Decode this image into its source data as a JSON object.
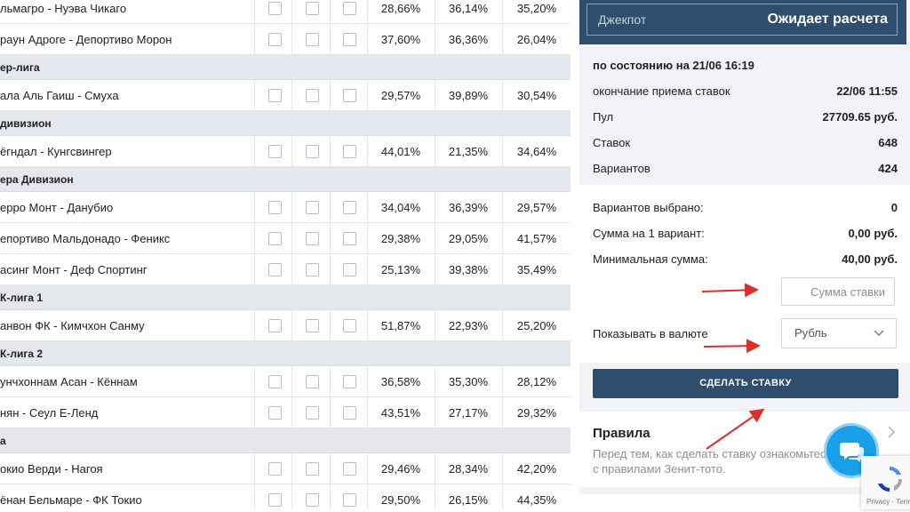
{
  "matches_table": {
    "rows": [
      {
        "type": "match",
        "name": "льмагро - Нуэва Чикаго",
        "p1": "28,66%",
        "px": "36,14%",
        "p2": "35,20%"
      },
      {
        "type": "match",
        "name": "раун Адроге - Депортиво Морон",
        "p1": "37,60%",
        "px": "36,36%",
        "p2": "26,04%"
      },
      {
        "type": "league",
        "name": "ер-лига"
      },
      {
        "type": "match",
        "name": "ала Аль Гаиш - Смуха",
        "p1": "29,57%",
        "px": "39,89%",
        "p2": "30,54%"
      },
      {
        "type": "league",
        "name": "дивизион"
      },
      {
        "type": "match",
        "name": "ёгндал - Кунгсвингер",
        "p1": "44,01%",
        "px": "21,35%",
        "p2": "34,64%"
      },
      {
        "type": "league",
        "name": "ера Дивизион"
      },
      {
        "type": "match",
        "name": "ерро Монт - Данубио",
        "p1": "34,04%",
        "px": "36,39%",
        "p2": "29,57%"
      },
      {
        "type": "match",
        "name": "епортиво Мальдонадо - Феникс",
        "p1": "29,38%",
        "px": "29,05%",
        "p2": "41,57%"
      },
      {
        "type": "match",
        "name": "асинг Монт - Деф Спортинг",
        "p1": "25,13%",
        "px": "39,38%",
        "p2": "35,49%"
      },
      {
        "type": "league",
        "name": "К-лига 1"
      },
      {
        "type": "match",
        "name": "анвон ФК - Кимчхон Санму",
        "p1": "51,87%",
        "px": "22,93%",
        "p2": "25,20%"
      },
      {
        "type": "league",
        "name": "К-лига 2"
      },
      {
        "type": "match",
        "name": "унчхоннам Асан - Кённам",
        "p1": "36,58%",
        "px": "35,30%",
        "p2": "28,12%"
      },
      {
        "type": "match",
        "name": "нян - Сеул Е-Ленд",
        "p1": "43,51%",
        "px": "27,17%",
        "p2": "29,32%"
      },
      {
        "type": "league",
        "name": "а"
      },
      {
        "type": "match",
        "name": "окио Верди - Нагоя",
        "p1": "29,46%",
        "px": "28,34%",
        "p2": "42,20%"
      },
      {
        "type": "match",
        "name": "ёнан Бельмаре - ФК Токио",
        "p1": "29,50%",
        "px": "26,15%",
        "p2": "44,35%"
      }
    ]
  },
  "jackpot": {
    "label": "Джекпот",
    "status": "Ожидает расчета"
  },
  "info": {
    "as_of": "по состоянию на 21/06 16:19",
    "close_label": "окончание приема ставок",
    "close_value": "22/06 11:55",
    "pool_label": "Пул",
    "pool_value": "27709.65 руб.",
    "bets_label": "Ставок",
    "bets_value": "648",
    "variants_label": "Вариантов",
    "variants_value": "424"
  },
  "selection": {
    "selected_label": "Вариантов выбрано:",
    "selected_value": "0",
    "per_variant_label": "Сумма на 1 вариант:",
    "per_variant_value": "0,00 руб.",
    "min_label": "Минимальная сумма:",
    "min_value": "40,00 руб.",
    "amount_placeholder": "Сумма ставки",
    "currency_label": "Показывать в валюте",
    "currency_value": "Рубль",
    "bet_button": "СДЕЛАТЬ СТАВКУ"
  },
  "rules": {
    "title": "Правила",
    "text": "Перед тем, как сделать ставку ознакомьтесь с правилами Зенит-тото."
  },
  "recaptcha": {
    "text": "Privacy - Terms"
  },
  "colors": {
    "header_bg": "#2f4e6e",
    "button_bg": "#2f4e6e",
    "league_row_bg": "#e4e8ee",
    "chat_button": "#1aa0e8",
    "annotation_arrow": "#d9302b"
  },
  "icons": {
    "chat": "chat-bubble-icon",
    "currency_dropdown": "chevron-down-icon",
    "rules": "chevron-right-icon",
    "recaptcha": "recaptcha-icon"
  }
}
